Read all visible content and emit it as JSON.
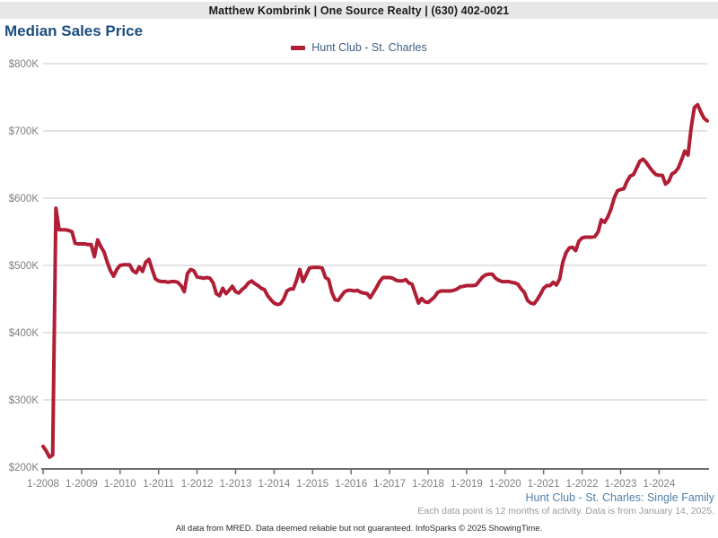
{
  "header": {
    "agent_line": "Matthew Kombrink | One Source Realty | (630) 402-0021"
  },
  "title": "Median Sales Price",
  "legend": {
    "label": "Hunt Club - St. Charles",
    "color": "#b01e36"
  },
  "footer": {
    "series_caption": "Hunt Club - St. Charles: Single Family",
    "data_note": "Each data point is 12 months of activity. Data is from January 14, 2025.",
    "disclaimer": "All data from MRED. Data deemed reliable but not guaranteed. InfoSparks © 2025 ShowingTime."
  },
  "chart_data": {
    "type": "line",
    "title": "Median Sales Price",
    "series_name": "Hunt Club - St. Charles",
    "unit": "USD (thousands)",
    "x_start": "1-2008",
    "x_interval": "monthly, each point = 12 months of activity",
    "x_tick_labels": [
      "1-2008",
      "1-2009",
      "1-2010",
      "1-2011",
      "1-2012",
      "1-2013",
      "1-2014",
      "1-2015",
      "1-2016",
      "1-2017",
      "1-2018",
      "1-2019",
      "1-2020",
      "1-2021",
      "1-2022",
      "1-2023",
      "1-2024"
    ],
    "y_tick_values": [
      200,
      300,
      400,
      500,
      600,
      700,
      800
    ],
    "y_tick_labels": [
      "$200K",
      "$300K",
      "$400K",
      "$500K",
      "$600K",
      "$700K",
      "$800K"
    ],
    "ylim": [
      200,
      800
    ],
    "grid": true,
    "legend_position": "top-center",
    "line_color": "#b01e36",
    "line_width": 4,
    "monthly_values": [
      231,
      224,
      215,
      218,
      585,
      553,
      553,
      553,
      552,
      550,
      533,
      532,
      532,
      532,
      531,
      531,
      513,
      538,
      528,
      520,
      505,
      492,
      484,
      494,
      500,
      501,
      501,
      501,
      492,
      489,
      498,
      491,
      505,
      509,
      494,
      480,
      477,
      476,
      476,
      475,
      476,
      476,
      475,
      470,
      461,
      488,
      494,
      492,
      483,
      482,
      481,
      482,
      481,
      474,
      458,
      455,
      466,
      458,
      463,
      469,
      461,
      459,
      464,
      468,
      474,
      477,
      473,
      470,
      466,
      464,
      455,
      449,
      444,
      442,
      443,
      450,
      462,
      465,
      465,
      478,
      494,
      476,
      486,
      496,
      497,
      497,
      497,
      496,
      482,
      479,
      460,
      449,
      448,
      455,
      461,
      463,
      463,
      462,
      463,
      460,
      459,
      458,
      452,
      460,
      468,
      477,
      482,
      482,
      482,
      481,
      478,
      477,
      477,
      479,
      474,
      472,
      458,
      444,
      451,
      446,
      445,
      449,
      453,
      460,
      462,
      462,
      462,
      462,
      463,
      465,
      468,
      469,
      470,
      470,
      470,
      471,
      477,
      483,
      486,
      487,
      487,
      481,
      478,
      476,
      476,
      476,
      475,
      474,
      472,
      465,
      460,
      448,
      444,
      443,
      449,
      457,
      466,
      470,
      470,
      475,
      471,
      480,
      505,
      519,
      526,
      527,
      522,
      536,
      541,
      542,
      542,
      542,
      543,
      550,
      568,
      564,
      572,
      584,
      600,
      611,
      613,
      614,
      625,
      633,
      635,
      645,
      655,
      658,
      653,
      646,
      640,
      635,
      634,
      634,
      621,
      625,
      636,
      639,
      645,
      657,
      670,
      664,
      705,
      735,
      739,
      728,
      719,
      715
    ]
  }
}
